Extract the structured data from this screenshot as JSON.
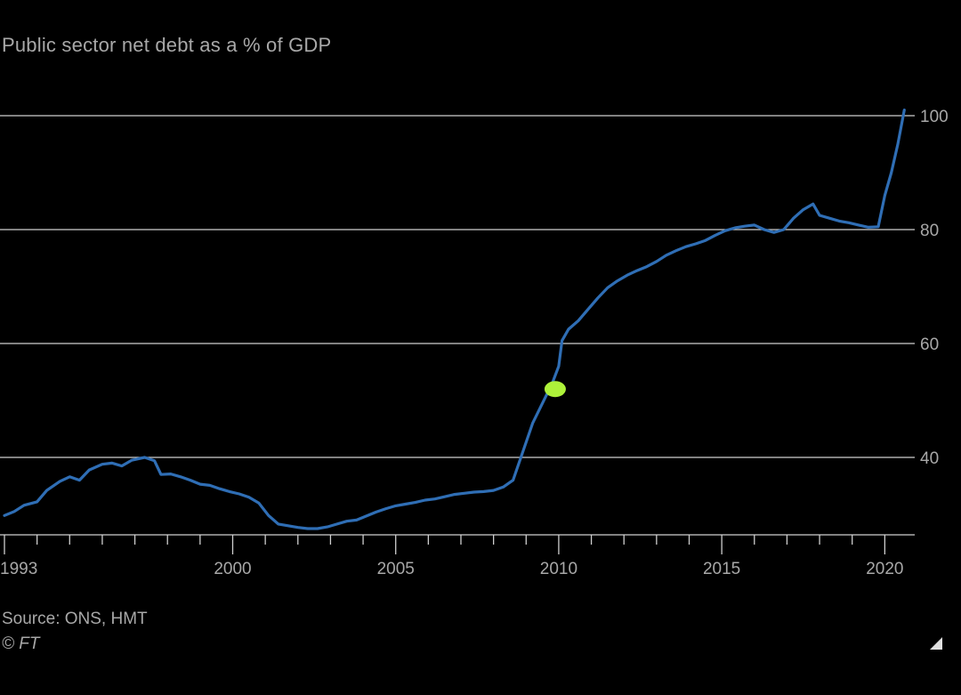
{
  "chart_data": {
    "type": "line",
    "title": "Public sector net debt as a % of GDP",
    "y_ticks": [
      40,
      60,
      80,
      100
    ],
    "x_ticks": [
      1993,
      2000,
      2005,
      2010,
      2015,
      2020
    ],
    "ylim": [
      26,
      102
    ],
    "xlim": [
      1993.0,
      2020.7
    ],
    "grid": true,
    "series": [
      {
        "color": "#2f6eb5",
        "points": [
          [
            1993.0,
            29.8
          ],
          [
            1993.3,
            30.5
          ],
          [
            1993.6,
            31.6
          ],
          [
            1994.0,
            32.2
          ],
          [
            1994.3,
            34.2
          ],
          [
            1994.7,
            35.8
          ],
          [
            1995.0,
            36.6
          ],
          [
            1995.3,
            36.0
          ],
          [
            1995.6,
            37.8
          ],
          [
            1996.0,
            38.8
          ],
          [
            1996.3,
            39.0
          ],
          [
            1996.6,
            38.5
          ],
          [
            1996.9,
            39.5
          ],
          [
            1997.3,
            40.0
          ],
          [
            1997.6,
            39.4
          ],
          [
            1997.8,
            37.0
          ],
          [
            1998.1,
            37.1
          ],
          [
            1998.4,
            36.6
          ],
          [
            1998.7,
            36.0
          ],
          [
            1999.0,
            35.3
          ],
          [
            1999.3,
            35.1
          ],
          [
            1999.6,
            34.5
          ],
          [
            1999.9,
            34.0
          ],
          [
            2000.2,
            33.6
          ],
          [
            2000.5,
            33.0
          ],
          [
            2000.8,
            32.0
          ],
          [
            2001.1,
            29.8
          ],
          [
            2001.4,
            28.3
          ],
          [
            2001.7,
            28.0
          ],
          [
            2002.0,
            27.7
          ],
          [
            2002.3,
            27.5
          ],
          [
            2002.6,
            27.5
          ],
          [
            2002.9,
            27.8
          ],
          [
            2003.2,
            28.3
          ],
          [
            2003.5,
            28.8
          ],
          [
            2003.8,
            29.0
          ],
          [
            2004.1,
            29.7
          ],
          [
            2004.4,
            30.4
          ],
          [
            2004.7,
            31.0
          ],
          [
            2005.0,
            31.5
          ],
          [
            2005.3,
            31.8
          ],
          [
            2005.6,
            32.1
          ],
          [
            2005.9,
            32.5
          ],
          [
            2006.2,
            32.7
          ],
          [
            2006.5,
            33.1
          ],
          [
            2006.8,
            33.5
          ],
          [
            2007.1,
            33.7
          ],
          [
            2007.4,
            33.9
          ],
          [
            2007.7,
            34.0
          ],
          [
            2008.0,
            34.2
          ],
          [
            2008.3,
            34.8
          ],
          [
            2008.6,
            36.0
          ],
          [
            2008.9,
            41.0
          ],
          [
            2009.2,
            46.0
          ],
          [
            2009.5,
            49.5
          ],
          [
            2009.8,
            53.0
          ],
          [
            2010.0,
            56.0
          ],
          [
            2010.1,
            60.5
          ],
          [
            2010.3,
            62.5
          ],
          [
            2010.6,
            64.0
          ],
          [
            2010.9,
            66.0
          ],
          [
            2011.2,
            68.0
          ],
          [
            2011.5,
            69.8
          ],
          [
            2011.8,
            71.0
          ],
          [
            2012.1,
            72.0
          ],
          [
            2012.4,
            72.8
          ],
          [
            2012.7,
            73.5
          ],
          [
            2013.0,
            74.4
          ],
          [
            2013.3,
            75.5
          ],
          [
            2013.6,
            76.3
          ],
          [
            2013.9,
            77.0
          ],
          [
            2014.2,
            77.5
          ],
          [
            2014.5,
            78.1
          ],
          [
            2014.8,
            79.0
          ],
          [
            2015.1,
            79.8
          ],
          [
            2015.4,
            80.3
          ],
          [
            2015.7,
            80.6
          ],
          [
            2016.0,
            80.8
          ],
          [
            2016.3,
            80.0
          ],
          [
            2016.6,
            79.5
          ],
          [
            2016.9,
            80.0
          ],
          [
            2017.2,
            82.0
          ],
          [
            2017.5,
            83.5
          ],
          [
            2017.8,
            84.5
          ],
          [
            2018.0,
            82.5
          ],
          [
            2018.3,
            82.0
          ],
          [
            2018.6,
            81.5
          ],
          [
            2018.9,
            81.2
          ],
          [
            2019.2,
            80.8
          ],
          [
            2019.5,
            80.4
          ],
          [
            2019.8,
            80.5
          ],
          [
            2020.0,
            86.0
          ],
          [
            2020.2,
            90.0
          ],
          [
            2020.4,
            95.0
          ],
          [
            2020.6,
            101.0
          ]
        ]
      }
    ],
    "highlight_marker": {
      "x": 2010.0,
      "y": 52.0,
      "color": "#aef23a"
    },
    "source": "Source: ONS, HMT",
    "credit": "© FT"
  }
}
